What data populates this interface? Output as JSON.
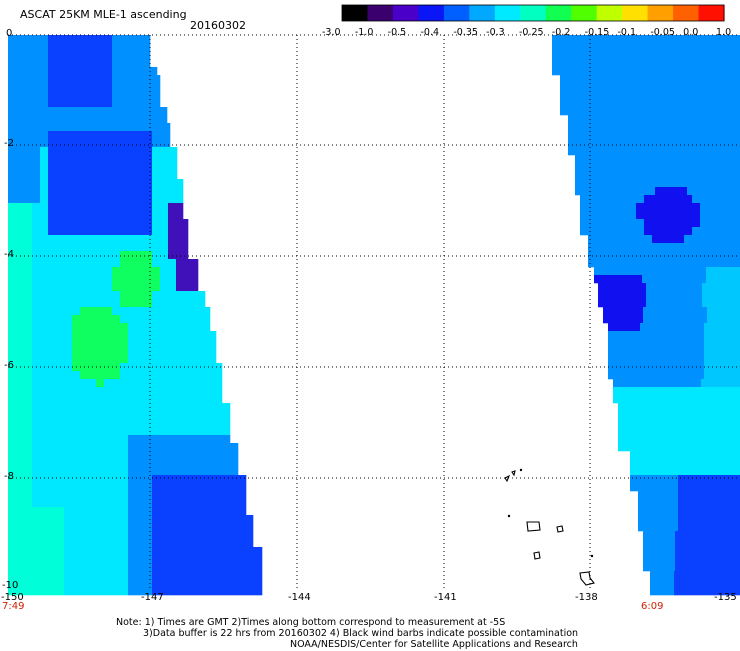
{
  "header": {
    "title": "ASCAT 25KM MLE-1 ascending",
    "date": "20160302"
  },
  "colorbar": {
    "labels": [
      "-3.0",
      "-1.0",
      "-0.5",
      "-0.4",
      "-0.35",
      "-0.3",
      "-0.25",
      "-0.2",
      "-0.15",
      "-0.1",
      "-0.05",
      "0.0",
      "1.0"
    ],
    "colors": [
      "#000000",
      "#3a006e",
      "#4a00c8",
      "#0a16f5",
      "#0060ff",
      "#00a8ff",
      "#00eaff",
      "#00ffc0",
      "#10ff50",
      "#50ff00",
      "#c0ff00",
      "#ffe000",
      "#ffa000",
      "#ff6000",
      "#ff1000"
    ]
  },
  "map": {
    "x_ticks": [
      "-150",
      "-147",
      "-144",
      "-141",
      "-138",
      "-135"
    ],
    "y_ticks": [
      "0",
      "-2",
      "-4",
      "-6",
      "-8",
      "-10"
    ],
    "lon_range": [
      -150,
      -135
    ],
    "lat_range": [
      -10,
      0
    ],
    "swath_colors": {
      "blue": "#0a40ff",
      "mid_blue": "#0090ff",
      "light_blue": "#00c8ff",
      "cyan": "#00e8ff",
      "aqua": "#00ffd8",
      "green": "#10ff60",
      "dark_blue": "#1010f0",
      "purple": "#4010b8"
    }
  },
  "times": {
    "left": "7:49",
    "right": "6:09"
  },
  "notes": {
    "line1": "Note: 1) Times are GMT 2)Times along bottom correspond to measurement at -5S",
    "line2": "3)Data buffer is 22 hrs from 20160302 4) Black wind barbs indicate possible contamination",
    "line3": "NOAA/NESDIS/Center for Satellite Applications and Research"
  }
}
